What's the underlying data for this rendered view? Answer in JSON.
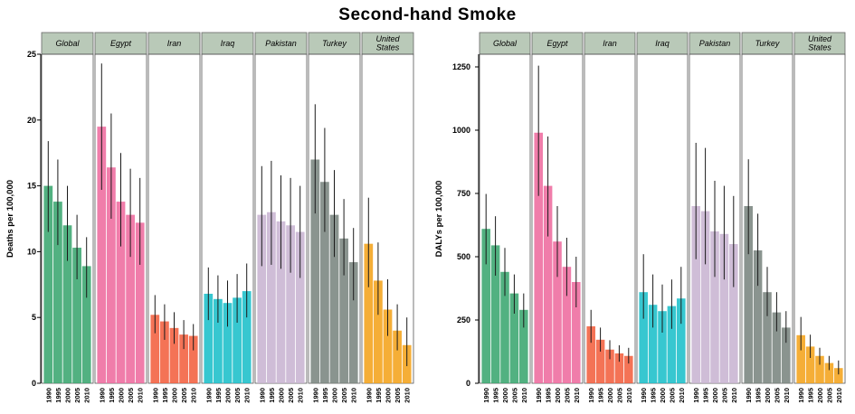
{
  "title": "Second-hand Smoke",
  "colors": {
    "Global": "#3aa66f",
    "Egypt": "#ee6b9e",
    "Iran": "#f2603f",
    "Iraq": "#1bbfc9",
    "Pakistan": "#c8b4d2",
    "Turkey": "#7a8580",
    "United States": "#f4a31b",
    "strip_fill": "#b9c9b8",
    "error_bar": "#1a1a1a"
  },
  "chart_data": [
    {
      "type": "bar",
      "panel": "deaths",
      "ylabel": "Deaths per 100,000",
      "ylim": [
        0,
        25
      ],
      "yticks": [
        0,
        5,
        10,
        15,
        20,
        25
      ],
      "categories": [
        "1990",
        "1995",
        "2000",
        "2005",
        "2010"
      ],
      "facets": [
        {
          "name": "Global",
          "values": [
            15.0,
            13.8,
            12.0,
            10.3,
            8.9
          ],
          "lower": [
            11.5,
            10.5,
            9.3,
            7.9,
            6.5
          ],
          "upper": [
            18.4,
            17.0,
            15.0,
            12.8,
            11.1
          ]
        },
        {
          "name": "Egypt",
          "values": [
            19.5,
            16.4,
            13.8,
            12.8,
            12.2
          ],
          "lower": [
            14.7,
            12.5,
            10.4,
            9.6,
            9.0
          ],
          "upper": [
            24.3,
            20.5,
            17.5,
            16.3,
            15.6
          ]
        },
        {
          "name": "Iran",
          "values": [
            5.2,
            4.7,
            4.2,
            3.7,
            3.6
          ],
          "lower": [
            3.8,
            3.3,
            3.0,
            2.6,
            2.5
          ],
          "upper": [
            6.7,
            6.0,
            5.4,
            4.8,
            4.5
          ]
        },
        {
          "name": "Iraq",
          "values": [
            6.8,
            6.4,
            6.1,
            6.5,
            7.0
          ],
          "lower": [
            4.8,
            4.6,
            4.3,
            4.6,
            5.0
          ],
          "upper": [
            8.8,
            8.2,
            7.8,
            8.3,
            9.1
          ]
        },
        {
          "name": "Pakistan",
          "values": [
            12.8,
            13.0,
            12.3,
            12.0,
            11.5
          ],
          "lower": [
            8.9,
            9.0,
            8.7,
            8.4,
            8.0
          ],
          "upper": [
            16.5,
            16.9,
            15.8,
            15.6,
            15.0
          ]
        },
        {
          "name": "Turkey",
          "values": [
            17.0,
            15.3,
            12.8,
            11.0,
            9.2
          ],
          "lower": [
            12.9,
            11.5,
            9.6,
            8.2,
            6.3
          ],
          "upper": [
            21.2,
            19.4,
            16.2,
            14.0,
            11.8
          ]
        },
        {
          "name": "United States",
          "values": [
            10.6,
            7.8,
            5.6,
            4.0,
            2.9
          ],
          "lower": [
            7.3,
            5.2,
            3.6,
            2.5,
            1.3
          ],
          "upper": [
            14.1,
            10.7,
            7.9,
            6.0,
            5.0
          ]
        }
      ]
    },
    {
      "type": "bar",
      "panel": "dalys",
      "ylabel": "DALYs per 100,000",
      "ylim": [
        0,
        1300
      ],
      "yticks": [
        0,
        250,
        500,
        750,
        1000,
        1250
      ],
      "categories": [
        "1990",
        "1995",
        "2000",
        "2005",
        "2010"
      ],
      "facets": [
        {
          "name": "Global",
          "values": [
            610,
            545,
            440,
            355,
            290
          ],
          "lower": [
            470,
            425,
            345,
            275,
            220
          ],
          "upper": [
            748,
            660,
            535,
            430,
            355
          ]
        },
        {
          "name": "Egypt",
          "values": [
            990,
            780,
            560,
            460,
            400
          ],
          "lower": [
            740,
            580,
            420,
            345,
            300
          ],
          "upper": [
            1255,
            975,
            700,
            575,
            500
          ]
        },
        {
          "name": "Iran",
          "values": [
            225,
            172,
            133,
            118,
            108
          ],
          "lower": [
            160,
            125,
            95,
            85,
            78
          ],
          "upper": [
            290,
            220,
            170,
            150,
            140
          ]
        },
        {
          "name": "Iraq",
          "values": [
            360,
            310,
            285,
            305,
            335
          ],
          "lower": [
            255,
            220,
            200,
            215,
            235
          ],
          "upper": [
            510,
            430,
            390,
            410,
            460
          ]
        },
        {
          "name": "Pakistan",
          "values": [
            700,
            680,
            600,
            590,
            550
          ],
          "lower": [
            490,
            470,
            420,
            410,
            380
          ],
          "upper": [
            950,
            930,
            800,
            780,
            740
          ]
        },
        {
          "name": "Turkey",
          "values": [
            700,
            525,
            360,
            280,
            220
          ],
          "lower": [
            510,
            385,
            265,
            205,
            160
          ],
          "upper": [
            885,
            670,
            460,
            360,
            285
          ]
        },
        {
          "name": "United States",
          "values": [
            190,
            145,
            108,
            80,
            60
          ],
          "lower": [
            130,
            100,
            73,
            52,
            35
          ],
          "upper": [
            262,
            192,
            140,
            108,
            90
          ]
        }
      ]
    }
  ]
}
